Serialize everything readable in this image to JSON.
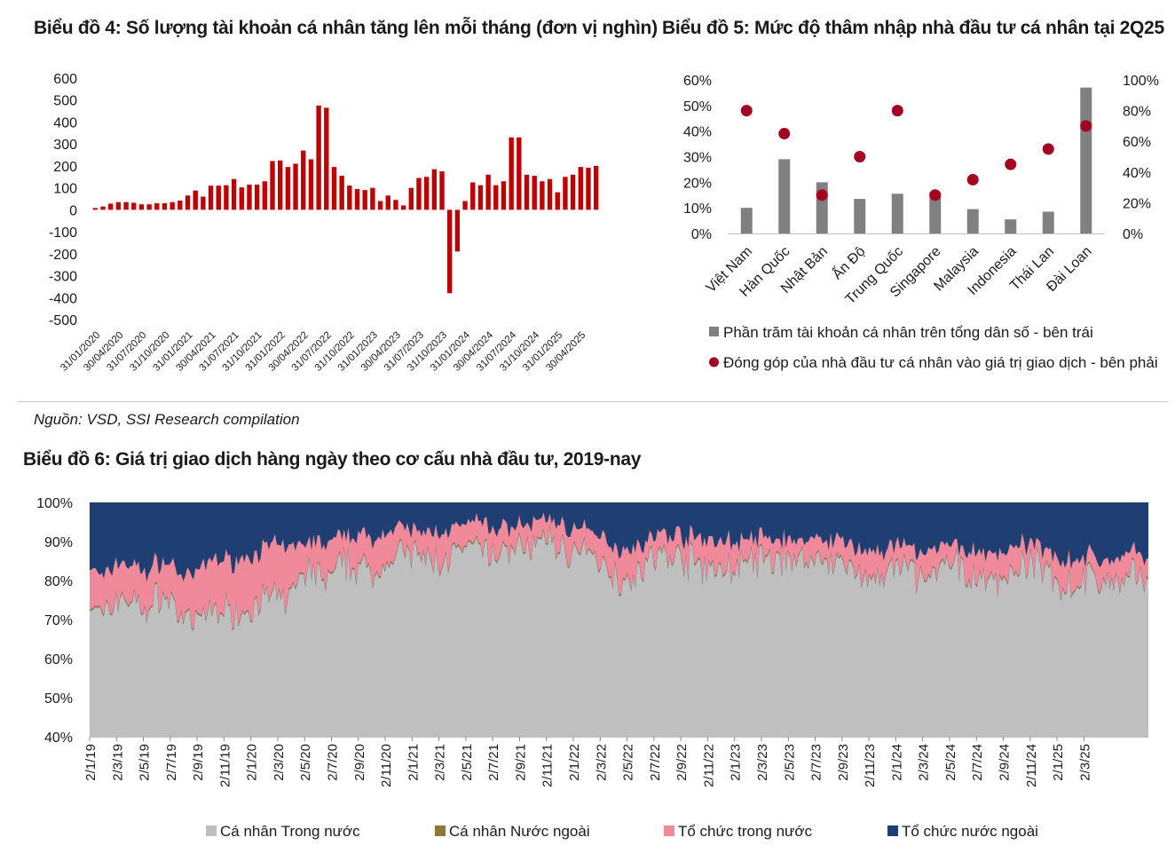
{
  "titles": {
    "chart4": "Biểu đồ 4: Số lượng tài khoản cá nhân tăng lên mỗi tháng (đơn vị nghìn)",
    "chart5": "Biểu đồ 5: Mức độ thâm nhập nhà đầu tư cá nhân tại 2Q25",
    "chart6": "Biểu đồ 6: Giá trị giao dịch hàng ngày theo cơ cấu nhà đầu tư, 2019-nay"
  },
  "source": "Nguồn: VSD, SSI Research compilation",
  "colors": {
    "bar_red": "#c00000",
    "gray_bar": "#808080",
    "dot_red": "#a50021",
    "area_gray": "#bfbfbf",
    "area_olive": "#8c7a3c",
    "area_pink": "#f08a9a",
    "area_navy": "#1f3f73"
  },
  "chart_data": [
    {
      "type": "bar",
      "title": "Biểu đồ 4: Số lượng tài khoản cá nhân tăng lên mỗi tháng (đơn vị nghìn)",
      "ylim": [
        -500,
        600
      ],
      "yticks": [
        "600",
        "500",
        "400",
        "300",
        "200",
        "100",
        "0",
        "-100",
        "-200",
        "-300",
        "-400",
        "-500"
      ],
      "xticks": [
        "31/01/2020",
        "30/04/2020",
        "31/07/2020",
        "31/10/2020",
        "31/01/2021",
        "30/04/2021",
        "31/07/2021",
        "31/10/2021",
        "31/01/2022",
        "30/04/2022",
        "31/07/2022",
        "31/10/2022",
        "31/01/2023",
        "30/04/2023",
        "31/07/2023",
        "31/10/2023",
        "31/01/2024",
        "30/04/2024",
        "31/07/2024",
        "31/10/2024",
        "31/01/2025",
        "30/04/2025"
      ],
      "values": [
        8,
        15,
        28,
        35,
        35,
        32,
        25,
        25,
        30,
        30,
        35,
        42,
        65,
        88,
        60,
        110,
        110,
        112,
        140,
        102,
        115,
        115,
        130,
        222,
        225,
        195,
        210,
        270,
        230,
        475,
        465,
        195,
        155,
        110,
        95,
        90,
        100,
        40,
        65,
        45,
        20,
        100,
        145,
        150,
        185,
        175,
        -380,
        -190,
        40,
        125,
        112,
        160,
        112,
        130,
        330,
        330,
        160,
        155,
        130,
        140,
        80,
        150,
        160,
        195,
        192,
        200
      ]
    },
    {
      "type": "bar+scatter",
      "title": "Biểu đồ 5: Mức độ thâm nhập nhà đầu tư cá nhân tại 2Q25",
      "categories": [
        "Việt Nam",
        "Hàn Quốc",
        "Nhật Bản",
        "Ấn Độ",
        "Trung Quốc",
        "Singapore",
        "Malaysia",
        "Indonesia",
        "Thái Lan",
        "Đài Loan"
      ],
      "left_axis": {
        "ylim": [
          0,
          60
        ],
        "ticks": [
          "60%",
          "50%",
          "40%",
          "30%",
          "20%",
          "10%",
          "0%"
        ]
      },
      "right_axis": {
        "ylim": [
          0,
          100
        ],
        "ticks": [
          "100%",
          "80%",
          "60%",
          "40%",
          "20%",
          "0%"
        ]
      },
      "series": [
        {
          "name": "Phần trăm tài khoản cá nhân trên tổng dân số - bên trái",
          "kind": "bar",
          "axis": "left",
          "values": [
            10,
            29,
            20,
            13.5,
            15.5,
            16,
            9.5,
            5.5,
            8.5,
            57
          ]
        },
        {
          "name": "Đóng góp của nhà đầu tư cá nhân vào giá trị giao dịch - bên phải",
          "kind": "scatter",
          "axis": "right",
          "values": [
            80,
            65,
            25,
            50,
            80,
            25,
            35,
            45,
            55,
            70
          ]
        }
      ]
    },
    {
      "type": "area",
      "stacked": true,
      "normalized": true,
      "title": "Biểu đồ 6: Giá trị giao dịch hàng ngày theo cơ cấu nhà đầu tư, 2019-nay",
      "ylim": [
        40,
        100
      ],
      "yticks": [
        "100%",
        "90%",
        "80%",
        "70%",
        "60%",
        "50%",
        "40%"
      ],
      "xticks": [
        "2/1/19",
        "2/3/19",
        "2/5/19",
        "2/7/19",
        "2/9/19",
        "2/11/19",
        "2/1/20",
        "2/3/20",
        "2/5/20",
        "2/7/20",
        "2/9/20",
        "2/11/20",
        "2/1/21",
        "2/3/21",
        "2/5/21",
        "2/7/21",
        "2/9/21",
        "2/11/21",
        "2/1/22",
        "2/3/22",
        "2/5/22",
        "2/7/22",
        "2/9/22",
        "2/11/22",
        "2/1/23",
        "2/3/23",
        "2/5/23",
        "2/7/23",
        "2/9/23",
        "2/11/23",
        "2/1/24",
        "2/3/24",
        "2/5/24",
        "2/7/24",
        "2/9/24",
        "2/11/24",
        "2/1/25",
        "2/3/25"
      ],
      "series_names": [
        "Cá nhân Trong nước",
        "Cá nhân Nước ngoài",
        "Tổ chức trong nước",
        "Tổ chức nước ngoài"
      ],
      "approx_monthly_profile": {
        "note": "approximate month-level cumulative top boundaries (percent) read from the chart",
        "individual_domestic_top": [
          74,
          70,
          76,
          75,
          72,
          76,
          74,
          68,
          70,
          73,
          72,
          72,
          74,
          76,
          74,
          80,
          82,
          80,
          83,
          84,
          82,
          83,
          86,
          87,
          85,
          85,
          86,
          87,
          88,
          86,
          88,
          88,
          89,
          90,
          88,
          87,
          86,
          84,
          80,
          82,
          84,
          86,
          86,
          85,
          84,
          82,
          83,
          84,
          85,
          84,
          86,
          85,
          84,
          86,
          84,
          82,
          81,
          80,
          83,
          82,
          80,
          82,
          84,
          82,
          80,
          80,
          82,
          83,
          84,
          82,
          78,
          80,
          80,
          79,
          80,
          81,
          80
        ],
        "individual_foreign_width": [
          0.4,
          0.4,
          0.4,
          0.4,
          0.4,
          0.4,
          0.4,
          0.4,
          0.4,
          0.4,
          0.4,
          0.4,
          0.4,
          0.4,
          0.4,
          0.4,
          0.4,
          0.4,
          0.4,
          0.4,
          0.4,
          0.4,
          0.4,
          0.4,
          0.4,
          0.4,
          0.4,
          0.4,
          0.4,
          0.4,
          0.4,
          0.4,
          0.4,
          0.4,
          0.4,
          0.4,
          0.4,
          0.4,
          0.4,
          0.4,
          0.4,
          0.4,
          0.4,
          0.4,
          0.4,
          0.4,
          0.4,
          0.4,
          0.4,
          0.4,
          0.4,
          0.4,
          0.4,
          0.4,
          0.4,
          0.4,
          0.4,
          0.4,
          0.4,
          0.4,
          0.4,
          0.4,
          0.4,
          0.4,
          0.4,
          0.4,
          0.4,
          0.4,
          0.4,
          0.4,
          0.4,
          0.4,
          0.4,
          0.4,
          0.4,
          0.4,
          0.4
        ],
        "institutional_domestic_top": [
          84,
          80,
          85,
          84,
          82,
          85,
          84,
          80,
          83,
          86,
          85,
          86,
          87,
          89,
          88,
          89,
          90,
          89,
          91,
          92,
          91,
          92,
          93,
          93,
          92,
          93,
          93,
          94,
          95,
          93,
          94,
          94,
          95,
          96,
          94,
          93,
          92,
          91,
          88,
          89,
          90,
          92,
          92,
          91,
          91,
          90,
          90,
          90,
          91,
          90,
          91,
          90,
          90,
          91,
          90,
          88,
          88,
          87,
          89,
          88,
          87,
          88,
          89,
          88,
          87,
          87,
          88,
          89,
          89,
          88,
          85,
          86,
          86,
          85,
          86,
          87,
          86
        ]
      }
    }
  ],
  "legend5": [
    "Phần trăm tài khoản cá nhân trên tổng dân số - bên trái",
    "Đóng góp của nhà đầu tư cá nhân vào giá trị giao dịch - bên phải"
  ],
  "legend6": [
    "Cá nhân Trong nước",
    "Cá nhân Nước ngoài",
    "Tổ chức trong nước",
    "Tổ chức nước ngoài"
  ]
}
